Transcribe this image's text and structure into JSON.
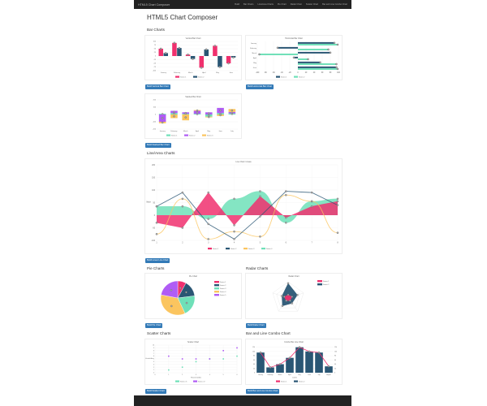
{
  "nav": {
    "brand": "HTML5 Chart Composer",
    "links": [
      "Build",
      "Bar Charts",
      "Line/Area Charts",
      "Pie Chart",
      "Radar Chart",
      "Scatter Chart",
      "Bar and Line Combo Chart"
    ]
  },
  "page_title": "HTML5 Chart Composer",
  "sections": {
    "bar": "Bar Charts",
    "line": "Line/Area Charts",
    "pie": "Pie Charts",
    "radar": "Radar Charts",
    "scatter": "Scatter Charts",
    "combo": "Bar and Line Combo Chart"
  },
  "buttons": {
    "vbar": "Build Vertical Bar Chart",
    "hbar": "Build Horizontal Bar Chart",
    "stacked": "Build Stacked Bar Chart",
    "line": "Build Linear Line Chart",
    "pie": "Build Pie Chart",
    "radar": "Build Radar Chart",
    "scatter": "Build Scatter Chart",
    "combo": "Build Bar and Line Combo Chart"
  },
  "colors": {
    "pink": "#f0306e",
    "navy": "#2a5674",
    "green": "#6fe0b8",
    "orange": "#fbc55f",
    "purple": "#b05cf5",
    "accent": "#337ab7"
  },
  "chart_data": [
    {
      "id": "vbar",
      "type": "bar",
      "title": "Vertical Bar Chart",
      "categories": [
        "January",
        "February",
        "March",
        "April",
        "May",
        "June"
      ],
      "ylim": [
        -100,
        100
      ],
      "yticks": [
        -100,
        -75,
        -50,
        -25,
        0,
        25,
        50,
        75,
        100
      ],
      "series": [
        {
          "name": "Series 1",
          "color": "#f0306e",
          "values": [
            50,
            90,
            10,
            -80,
            70,
            -50
          ]
        },
        {
          "name": "Series 2",
          "color": "#2a5674",
          "values": [
            20,
            55,
            -20,
            45,
            -75,
            -10
          ]
        }
      ]
    },
    {
      "id": "hbar",
      "type": "bar",
      "orientation": "horizontal",
      "title": "Horizontal Bar Chart",
      "categories": [
        "January",
        "February",
        "March",
        "April",
        "May",
        "June"
      ],
      "xlim": [
        -100,
        100
      ],
      "xticks": [
        -100,
        -80,
        -60,
        -40,
        -20,
        0,
        20,
        40,
        60,
        80,
        100
      ],
      "series": [
        {
          "name": "Series 1",
          "color": "#2a5674",
          "values": [
            90,
            -50,
            80,
            -10,
            55,
            95
          ]
        },
        {
          "name": "Series 2",
          "color": "#6fe0b8",
          "values": [
            98,
            75,
            -95,
            25,
            95,
            98
          ]
        }
      ]
    },
    {
      "id": "stacked",
      "type": "bar",
      "stacked": true,
      "title": "Stacked Bar Chart",
      "categories": [
        "January",
        "February",
        "March",
        "April",
        "May",
        "June",
        "July"
      ],
      "ylim": [
        -200,
        200
      ],
      "yticks": [
        -200,
        -100,
        0,
        100,
        200
      ],
      "series": [
        {
          "name": "Series 1",
          "color": "#6fe0b8",
          "values": [
            10,
            20,
            10,
            10,
            -30,
            20,
            15
          ]
        },
        {
          "name": "Series 2",
          "color": "#b05cf5",
          "values": [
            -100,
            30,
            20,
            40,
            30,
            70,
            20
          ]
        },
        {
          "name": "Series 3",
          "color": "#fbc55f",
          "values": [
            -20,
            -50,
            -80,
            10,
            -10,
            -20,
            40
          ]
        }
      ]
    },
    {
      "id": "line",
      "type": "line",
      "title": "Line Chart / Areas",
      "x": [
        1,
        2,
        3,
        4,
        5,
        6,
        7,
        8
      ],
      "ylim": [
        -100,
        200
      ],
      "yticks": [
        -100,
        -50,
        0,
        50,
        100,
        150,
        200
      ],
      "ylabel": "Value",
      "series": [
        {
          "name": "Series 1",
          "color": "#f0306e",
          "fill": true,
          "values": [
            -30,
            -50,
            90,
            -40,
            75,
            -10,
            35,
            55
          ]
        },
        {
          "name": "Series 2",
          "color": "#2a5674",
          "fill": false,
          "values": [
            35,
            90,
            -35,
            -95,
            -5,
            95,
            90,
            40
          ]
        },
        {
          "name": "Series 3",
          "color": "#fbc55f",
          "fill": false,
          "curve": true,
          "values": [
            -75,
            65,
            -95,
            -65,
            -85,
            80,
            55,
            -70
          ]
        },
        {
          "name": "Series 4",
          "color": "#6fe0b8",
          "fill": true,
          "curve": true,
          "values": [
            35,
            35,
            -15,
            65,
            95,
            -30,
            55,
            65
          ]
        }
      ]
    },
    {
      "id": "pie",
      "type": "pie",
      "title": "Pie Chart",
      "series": [
        {
          "name": "Series 1",
          "color": "#f0306e",
          "value": 8
        },
        {
          "name": "Series 2",
          "color": "#2a5674",
          "value": 15
        },
        {
          "name": "Series 3",
          "color": "#6fe0b8",
          "value": 20
        },
        {
          "name": "Series 4",
          "color": "#fbc55f",
          "value": 35
        },
        {
          "name": "Series 5",
          "color": "#b05cf5",
          "value": 22
        }
      ]
    },
    {
      "id": "radar",
      "type": "radar",
      "title": "Radar Chart",
      "rmax": 100,
      "series": [
        {
          "name": "Series 1",
          "color": "#f0306e",
          "values": [
            20,
            25,
            20,
            20,
            25
          ]
        },
        {
          "name": "Series 2",
          "color": "#2a5674",
          "values": [
            90,
            60,
            40,
            60,
            40
          ]
        }
      ]
    },
    {
      "id": "scatter",
      "type": "scatter",
      "title": "Scatter Chart",
      "xlim": [
        0,
        6
      ],
      "ylim": [
        0,
        10
      ],
      "xlabel": "Horizontal Axis",
      "ylabel": "Vertical Axis",
      "series": [
        {
          "name": "Series #1",
          "color": "#6fe0b8",
          "points": [
            [
              1,
              1
            ],
            [
              2,
              2
            ],
            [
              3,
              4
            ],
            [
              4,
              5
            ],
            [
              5,
              5
            ],
            [
              6,
              6
            ]
          ]
        },
        {
          "name": "Series #2",
          "color": "#b05cf5",
          "points": [
            [
              1,
              6
            ],
            [
              2,
              5
            ],
            [
              3,
              5
            ],
            [
              4,
              5
            ],
            [
              5,
              8
            ],
            [
              6,
              9
            ]
          ]
        }
      ]
    },
    {
      "id": "combo",
      "type": "bar+line",
      "title": "Combo Bar Line Chart",
      "categories": [
        "January",
        "February",
        "March",
        "April",
        "May",
        "June",
        "July",
        "August"
      ],
      "ylim": [
        0,
        130
      ],
      "xlabel": "Labels",
      "series": [
        {
          "name": "Series 1",
          "type": "line",
          "color": "#f0306e",
          "values": [
            95,
            25,
            40,
            70,
            120,
            100,
            95,
            30
          ]
        },
        {
          "name": "Series 2",
          "type": "bar",
          "color": "#2a5674",
          "values": [
            95,
            25,
            40,
            70,
            120,
            100,
            95,
            30
          ]
        }
      ]
    }
  ]
}
